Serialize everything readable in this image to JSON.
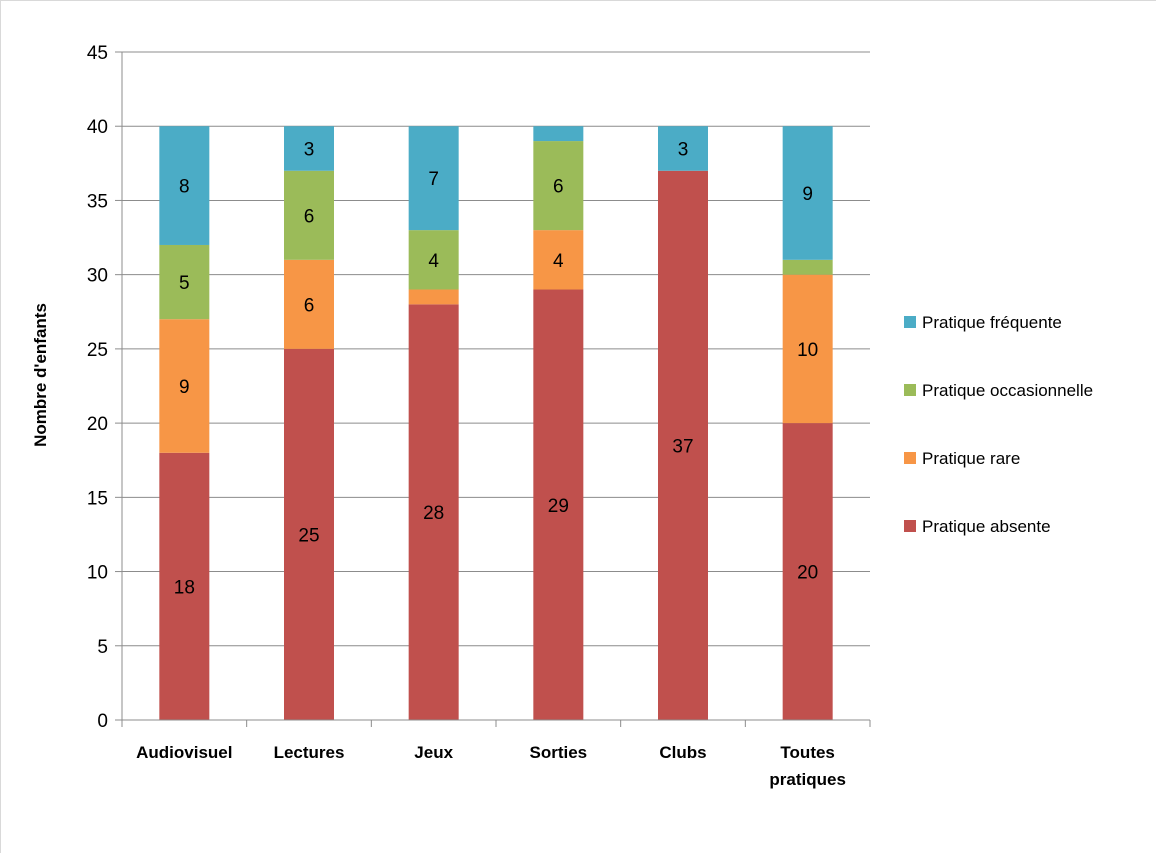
{
  "chart_data": {
    "type": "bar",
    "stacked": true,
    "categories": [
      [
        "Audiovisuel"
      ],
      [
        "Lectures"
      ],
      [
        "Jeux"
      ],
      [
        "Sorties"
      ],
      [
        "Clubs"
      ],
      [
        "Toutes",
        "pratiques"
      ]
    ],
    "series": [
      {
        "name": "Pratique absente",
        "color": "#C0504D",
        "values": [
          18,
          25,
          28,
          29,
          37,
          20
        ],
        "labels": [
          "18",
          "25",
          "28",
          "29",
          "37",
          "20"
        ]
      },
      {
        "name": "Pratique rare",
        "color": "#F79646",
        "values": [
          9,
          6,
          1,
          4,
          0,
          10
        ],
        "labels": [
          "9",
          "6",
          "",
          "4",
          "",
          "10"
        ]
      },
      {
        "name": "Pratique occasionnelle",
        "color": "#9BBB59",
        "values": [
          5,
          6,
          4,
          6,
          0,
          1
        ],
        "labels": [
          "5",
          "6",
          "4",
          "6",
          "",
          ""
        ]
      },
      {
        "name": "Pratique fréquente",
        "color": "#4BACC6",
        "values": [
          8,
          3,
          7,
          1,
          3,
          9
        ],
        "labels": [
          "8",
          "3",
          "7",
          "",
          "3",
          "9"
        ]
      }
    ],
    "legend_order": [
      3,
      2,
      1,
      0
    ],
    "ylabel": "Nombre d'enfants",
    "xlabel": "",
    "ylim": [
      0,
      45
    ],
    "yticks": [
      0,
      5,
      10,
      15,
      20,
      25,
      30,
      35,
      40,
      45
    ],
    "grid": true,
    "legend_position": "right"
  }
}
